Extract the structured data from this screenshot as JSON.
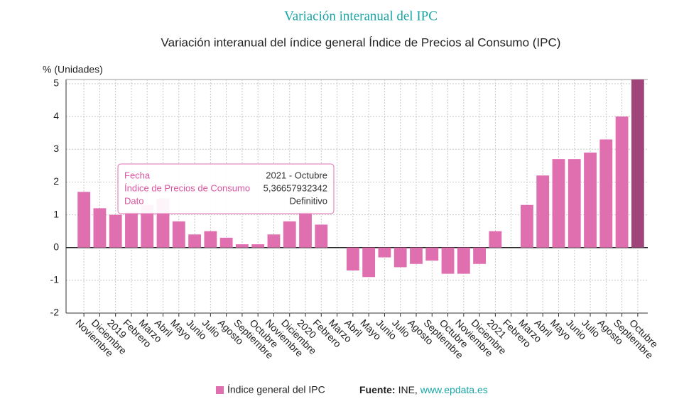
{
  "chart_data": {
    "type": "bar",
    "title": "Variación interanual del IPC",
    "subtitle": "Variación interanual del índice general Índice de Precios al Consumo (IPC)",
    "y_label": "% (Unidades)",
    "categories": [
      "Noviembre",
      "Diciembre",
      "2019",
      "Febrero",
      "Marzo",
      "Abril",
      "Mayo",
      "Junio",
      "Julio",
      "Agosto",
      "Septiembre",
      "Octubre",
      "Noviembre",
      "Diciembre",
      "2020",
      "Febrero",
      "Marzo",
      "Abril",
      "Mayo",
      "Junio",
      "Julio",
      "Agosto",
      "Septiembre",
      "Octubre",
      "Noviembre",
      "Diciembre",
      "2021",
      "Febrero",
      "Marzo",
      "Abril",
      "Mayo",
      "Junio",
      "Julio",
      "Agosto",
      "Septiembre",
      "Octubre"
    ],
    "series": [
      {
        "name": "Índice general del IPC",
        "color": "#e06fb0",
        "highlight_color": "#a0457a",
        "highlight_index": 35,
        "values": [
          1.7,
          1.2,
          1.0,
          1.1,
          1.3,
          1.5,
          0.8,
          0.4,
          0.5,
          0.3,
          0.1,
          0.1,
          0.4,
          0.8,
          1.1,
          0.7,
          0.0,
          -0.7,
          -0.9,
          -0.3,
          -0.6,
          -0.5,
          -0.4,
          -0.8,
          -0.8,
          -0.5,
          0.5,
          0.0,
          1.3,
          2.2,
          2.7,
          2.7,
          2.9,
          3.3,
          4.0,
          5.36657932342
        ]
      }
    ],
    "ylim": [
      -2,
      5.13
    ],
    "yticks": [
      -2,
      -1,
      0,
      1,
      2,
      3,
      4,
      5
    ],
    "grid": true,
    "tooltip": [
      [
        "Fecha",
        "2021 - Octubre"
      ],
      [
        "Índice de Precios de Consumo",
        "5,36657932342"
      ],
      [
        "Dato",
        "Definitivo"
      ]
    ],
    "source": {
      "label": "Fuente:",
      "name": "INE,",
      "link": "www.epdata.es"
    }
  }
}
